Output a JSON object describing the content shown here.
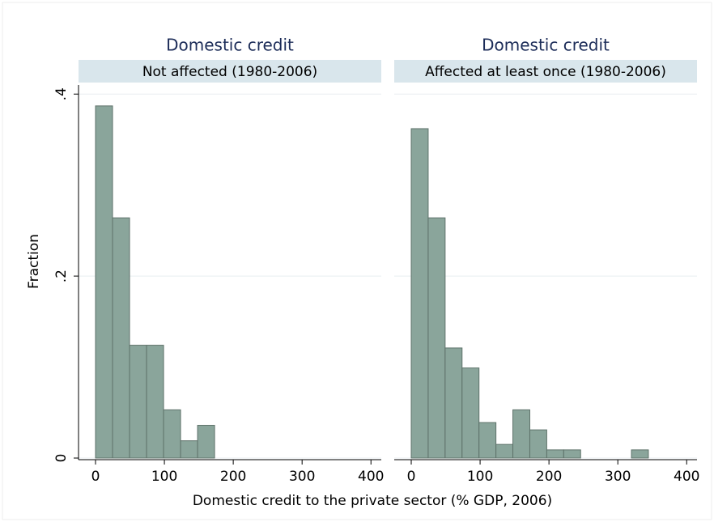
{
  "chart_data": [
    {
      "type": "histogram",
      "title": "Domestic credit",
      "subtitle": "Not affected (1980-2006)",
      "bins": [
        0,
        24.7,
        49.4,
        74.1,
        98.8,
        123.5,
        148.2,
        172.9
      ],
      "values": [
        0.387,
        0.264,
        0.124,
        0.124,
        0.053,
        0.019,
        0.036
      ],
      "color": "#8aa59b",
      "xlim": [
        -24.7,
        415
      ],
      "ylim": [
        0,
        0.41
      ],
      "xticks": [
        0,
        100,
        200,
        300,
        400
      ],
      "yticks": [
        0,
        {
          "value": 0.2,
          "label": ".2"
        },
        {
          "value": 0.4,
          "label": ".4"
        }
      ],
      "grid": true
    },
    {
      "type": "histogram",
      "title": "Domestic credit",
      "subtitle": "Affected at least once (1980-2006)",
      "bins": [
        0,
        24.6,
        49.2,
        73.8,
        98.4,
        123,
        147.6,
        172.2,
        196.8,
        221.4,
        246,
        270.6,
        295.2,
        319.8,
        344.4
      ],
      "values": [
        0.362,
        0.264,
        0.121,
        0.099,
        0.039,
        0.015,
        0.053,
        0.031,
        0.009,
        0.009,
        0,
        0,
        0,
        0.009
      ],
      "color": "#8aa59b",
      "xlim": [
        -24.7,
        415
      ],
      "ylim": [
        0,
        0.41
      ],
      "xticks": [
        0,
        100,
        200,
        300,
        400
      ],
      "yticks": [
        0,
        {
          "value": 0.2,
          "label": ".2"
        },
        {
          "value": 0.4,
          "label": ".4"
        }
      ],
      "grid": true
    }
  ],
  "xlabel": "Domestic credit to the private sector (% GDP, 2006)",
  "ylabel": "Fraction"
}
